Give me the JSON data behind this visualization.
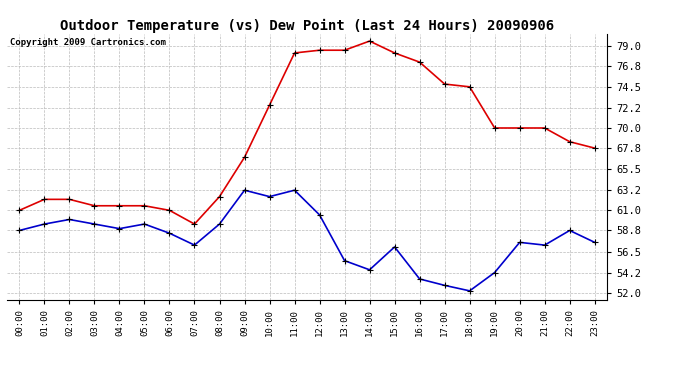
{
  "title": "Outdoor Temperature (vs) Dew Point (Last 24 Hours) 20090906",
  "copyright": "Copyright 2009 Cartronics.com",
  "x_labels": [
    "00:00",
    "01:00",
    "02:00",
    "03:00",
    "04:00",
    "05:00",
    "06:00",
    "07:00",
    "08:00",
    "09:00",
    "10:00",
    "11:00",
    "12:00",
    "13:00",
    "14:00",
    "15:00",
    "16:00",
    "17:00",
    "18:00",
    "19:00",
    "20:00",
    "21:00",
    "22:00",
    "23:00"
  ],
  "temp_data": [
    61.0,
    62.2,
    62.2,
    61.5,
    61.5,
    61.5,
    61.0,
    59.5,
    62.5,
    66.8,
    72.5,
    78.2,
    78.5,
    78.5,
    79.5,
    78.2,
    77.2,
    74.8,
    74.5,
    70.0,
    70.0,
    70.0,
    68.5,
    67.8
  ],
  "dew_data": [
    58.8,
    59.5,
    60.0,
    59.5,
    59.0,
    59.5,
    58.5,
    57.2,
    59.5,
    63.2,
    62.5,
    63.2,
    60.5,
    55.5,
    54.5,
    57.0,
    53.5,
    52.8,
    52.2,
    54.2,
    57.5,
    57.2,
    58.8,
    57.5
  ],
  "y_ticks": [
    52.0,
    54.2,
    56.5,
    58.8,
    61.0,
    63.2,
    65.5,
    67.8,
    70.0,
    72.2,
    74.5,
    76.8,
    79.0
  ],
  "ylim": [
    51.2,
    80.3
  ],
  "temp_color": "#dd0000",
  "dew_color": "#0000cc",
  "bg_color": "#ffffff",
  "plot_bg_color": "#ffffff",
  "grid_color": "#bbbbbb",
  "title_fontsize": 10,
  "copyright_fontsize": 6.5
}
